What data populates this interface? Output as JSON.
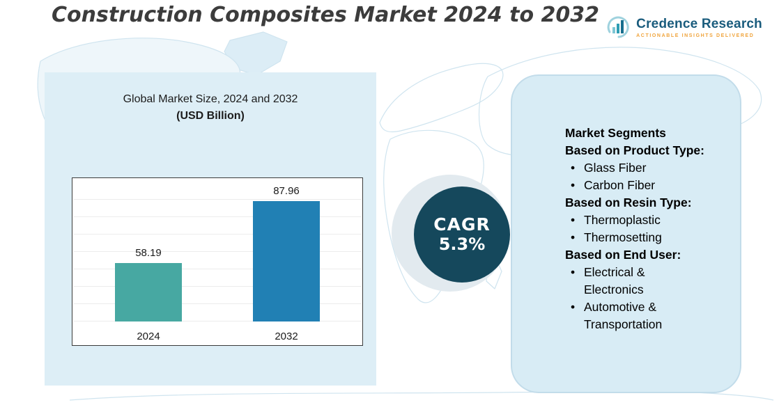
{
  "title": "Construction Composites Market 2024 to 2032",
  "logo": {
    "name": "Credence Research",
    "tagline": "Actionable Insights Delivered"
  },
  "left_panel": {
    "subtitle": "Global Market Size, 2024 and 2032",
    "unit_label": "(USD Billion)"
  },
  "cagr": {
    "label": "CAGR",
    "value": "5.3%"
  },
  "segments": {
    "items": [
      {
        "style": "heading",
        "text": "Market Segments"
      },
      {
        "style": "heading",
        "text": "Based on Product Type:"
      },
      {
        "style": "bullet",
        "text": "Glass Fiber"
      },
      {
        "style": "bullet",
        "text": "Carbon Fiber"
      },
      {
        "style": "heading",
        "text": "Based on Resin Type:"
      },
      {
        "style": "bullet",
        "text": "Thermoplastic"
      },
      {
        "style": "bullet",
        "text": "Thermosetting"
      },
      {
        "style": "heading",
        "text": "Based on End User:"
      },
      {
        "style": "bullet",
        "text": "Electrical & Electronics"
      },
      {
        "style": "bullet",
        "text": "Automotive & Transportation"
      }
    ]
  },
  "chart_data": {
    "type": "bar",
    "title": "Global Market Size, 2024 and 2032 (USD Billion)",
    "categories": [
      "2024",
      "2032"
    ],
    "values": [
      58.19,
      87.96
    ],
    "value_labels": [
      "58.19",
      "87.96"
    ],
    "colors": [
      "#47a8a2",
      "#2180b4"
    ],
    "ylim": [
      30,
      95
    ],
    "grid": true,
    "legend": "none"
  },
  "theme": {
    "panel_blue": "#ddeef6",
    "dark_circle": "#15485c",
    "map_outline": "#cfe4ef",
    "logo_blue": "#1a5c7d",
    "logo_orange": "#f0a43c"
  }
}
